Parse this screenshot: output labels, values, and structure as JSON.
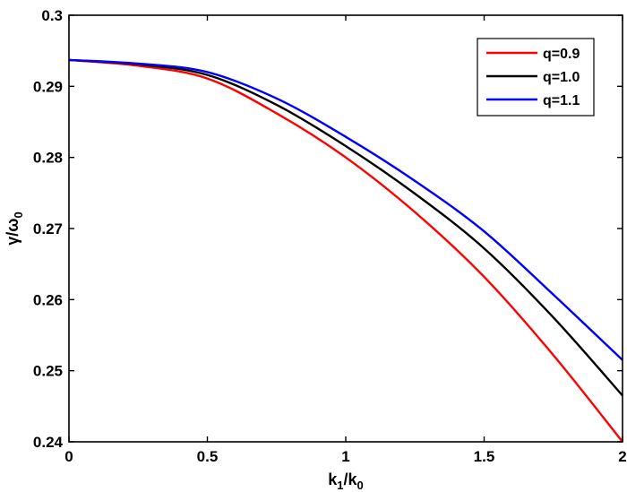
{
  "chart_data": {
    "type": "line",
    "title": "",
    "xlabel": "k_1/k_0",
    "ylabel": "γ/ω_0",
    "xlim": [
      0,
      2
    ],
    "ylim": [
      0.24,
      0.3
    ],
    "xticks": [
      0,
      0.5,
      1,
      1.5,
      2
    ],
    "xtick_labels": [
      "0",
      "0.5",
      "1",
      "1.5",
      "2"
    ],
    "yticks": [
      0.24,
      0.25,
      0.26,
      0.27,
      0.28,
      0.29,
      0.3
    ],
    "ytick_labels": [
      "0.24",
      "0.25",
      "0.26",
      "0.27",
      "0.28",
      "0.29",
      "0.3"
    ],
    "grid": false,
    "legend_position": "upper right",
    "x": [
      0,
      0.25,
      0.5,
      0.75,
      1.0,
      1.25,
      1.5,
      1.75,
      2.0
    ],
    "series": [
      {
        "name": "q=0.9",
        "color": "#ff0000",
        "values": [
          0.2937,
          0.2929,
          0.2911,
          0.2862,
          0.28,
          0.2723,
          0.2632,
          0.2522,
          0.24
        ]
      },
      {
        "name": "q=1.0",
        "color": "#000000",
        "values": [
          0.2937,
          0.2931,
          0.2916,
          0.2874,
          0.2816,
          0.2749,
          0.2672,
          0.2575,
          0.2465
        ]
      },
      {
        "name": "q=1.1",
        "color": "#0000ff",
        "values": [
          0.2937,
          0.2932,
          0.292,
          0.2883,
          0.2829,
          0.2767,
          0.2696,
          0.2607,
          0.2515
        ]
      }
    ]
  },
  "axes": {
    "xlabel_main": "k",
    "xlabel_sub1": "1",
    "xlabel_slash": "/k",
    "xlabel_sub2": "0",
    "ylabel_main": "γ/ω",
    "ylabel_sub": "0"
  },
  "legend": {
    "items": [
      {
        "label": "q=0.9",
        "color": "#ff0000"
      },
      {
        "label": "q=1.0",
        "color": "#000000"
      },
      {
        "label": "q=1.1",
        "color": "#0000ff"
      }
    ]
  }
}
